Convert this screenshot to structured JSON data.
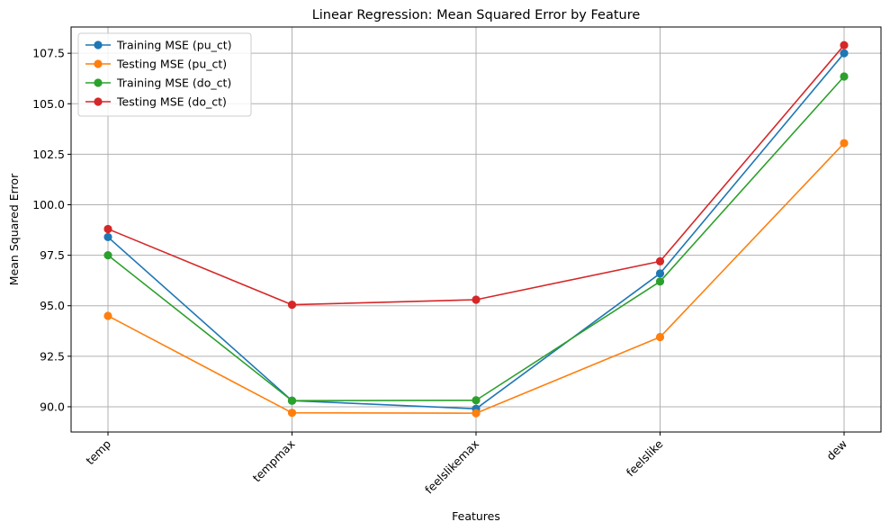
{
  "chart_data": {
    "type": "line",
    "title": "Linear Regression: Mean Squared Error by Feature",
    "xlabel": "Features",
    "ylabel": "Mean Squared Error",
    "categories": [
      "temp",
      "tempmax",
      "feelslikemax",
      "feelslike",
      "dew"
    ],
    "ylim": [
      88.75,
      108.8
    ],
    "yticks": [
      90.0,
      92.5,
      95.0,
      97.5,
      100.0,
      102.5,
      105.0,
      107.5
    ],
    "ytick_labels": [
      "90.0",
      "92.5",
      "95.0",
      "97.5",
      "100.0",
      "102.5",
      "105.0",
      "107.5"
    ],
    "grid": true,
    "legend_position": "top-left",
    "series": [
      {
        "name": "Training MSE (pu_ct)",
        "color": "#1f77b4",
        "values": [
          98.4,
          90.3,
          89.9,
          96.6,
          107.5
        ]
      },
      {
        "name": "Testing MSE (pu_ct)",
        "color": "#ff7f0e",
        "values": [
          94.5,
          89.7,
          89.68,
          93.45,
          103.05
        ]
      },
      {
        "name": "Training MSE (do_ct)",
        "color": "#2ca02c",
        "values": [
          97.5,
          90.3,
          90.32,
          96.2,
          106.35
        ]
      },
      {
        "name": "Testing MSE (do_ct)",
        "color": "#d62728",
        "values": [
          98.8,
          95.05,
          95.3,
          97.2,
          107.9
        ]
      }
    ]
  }
}
